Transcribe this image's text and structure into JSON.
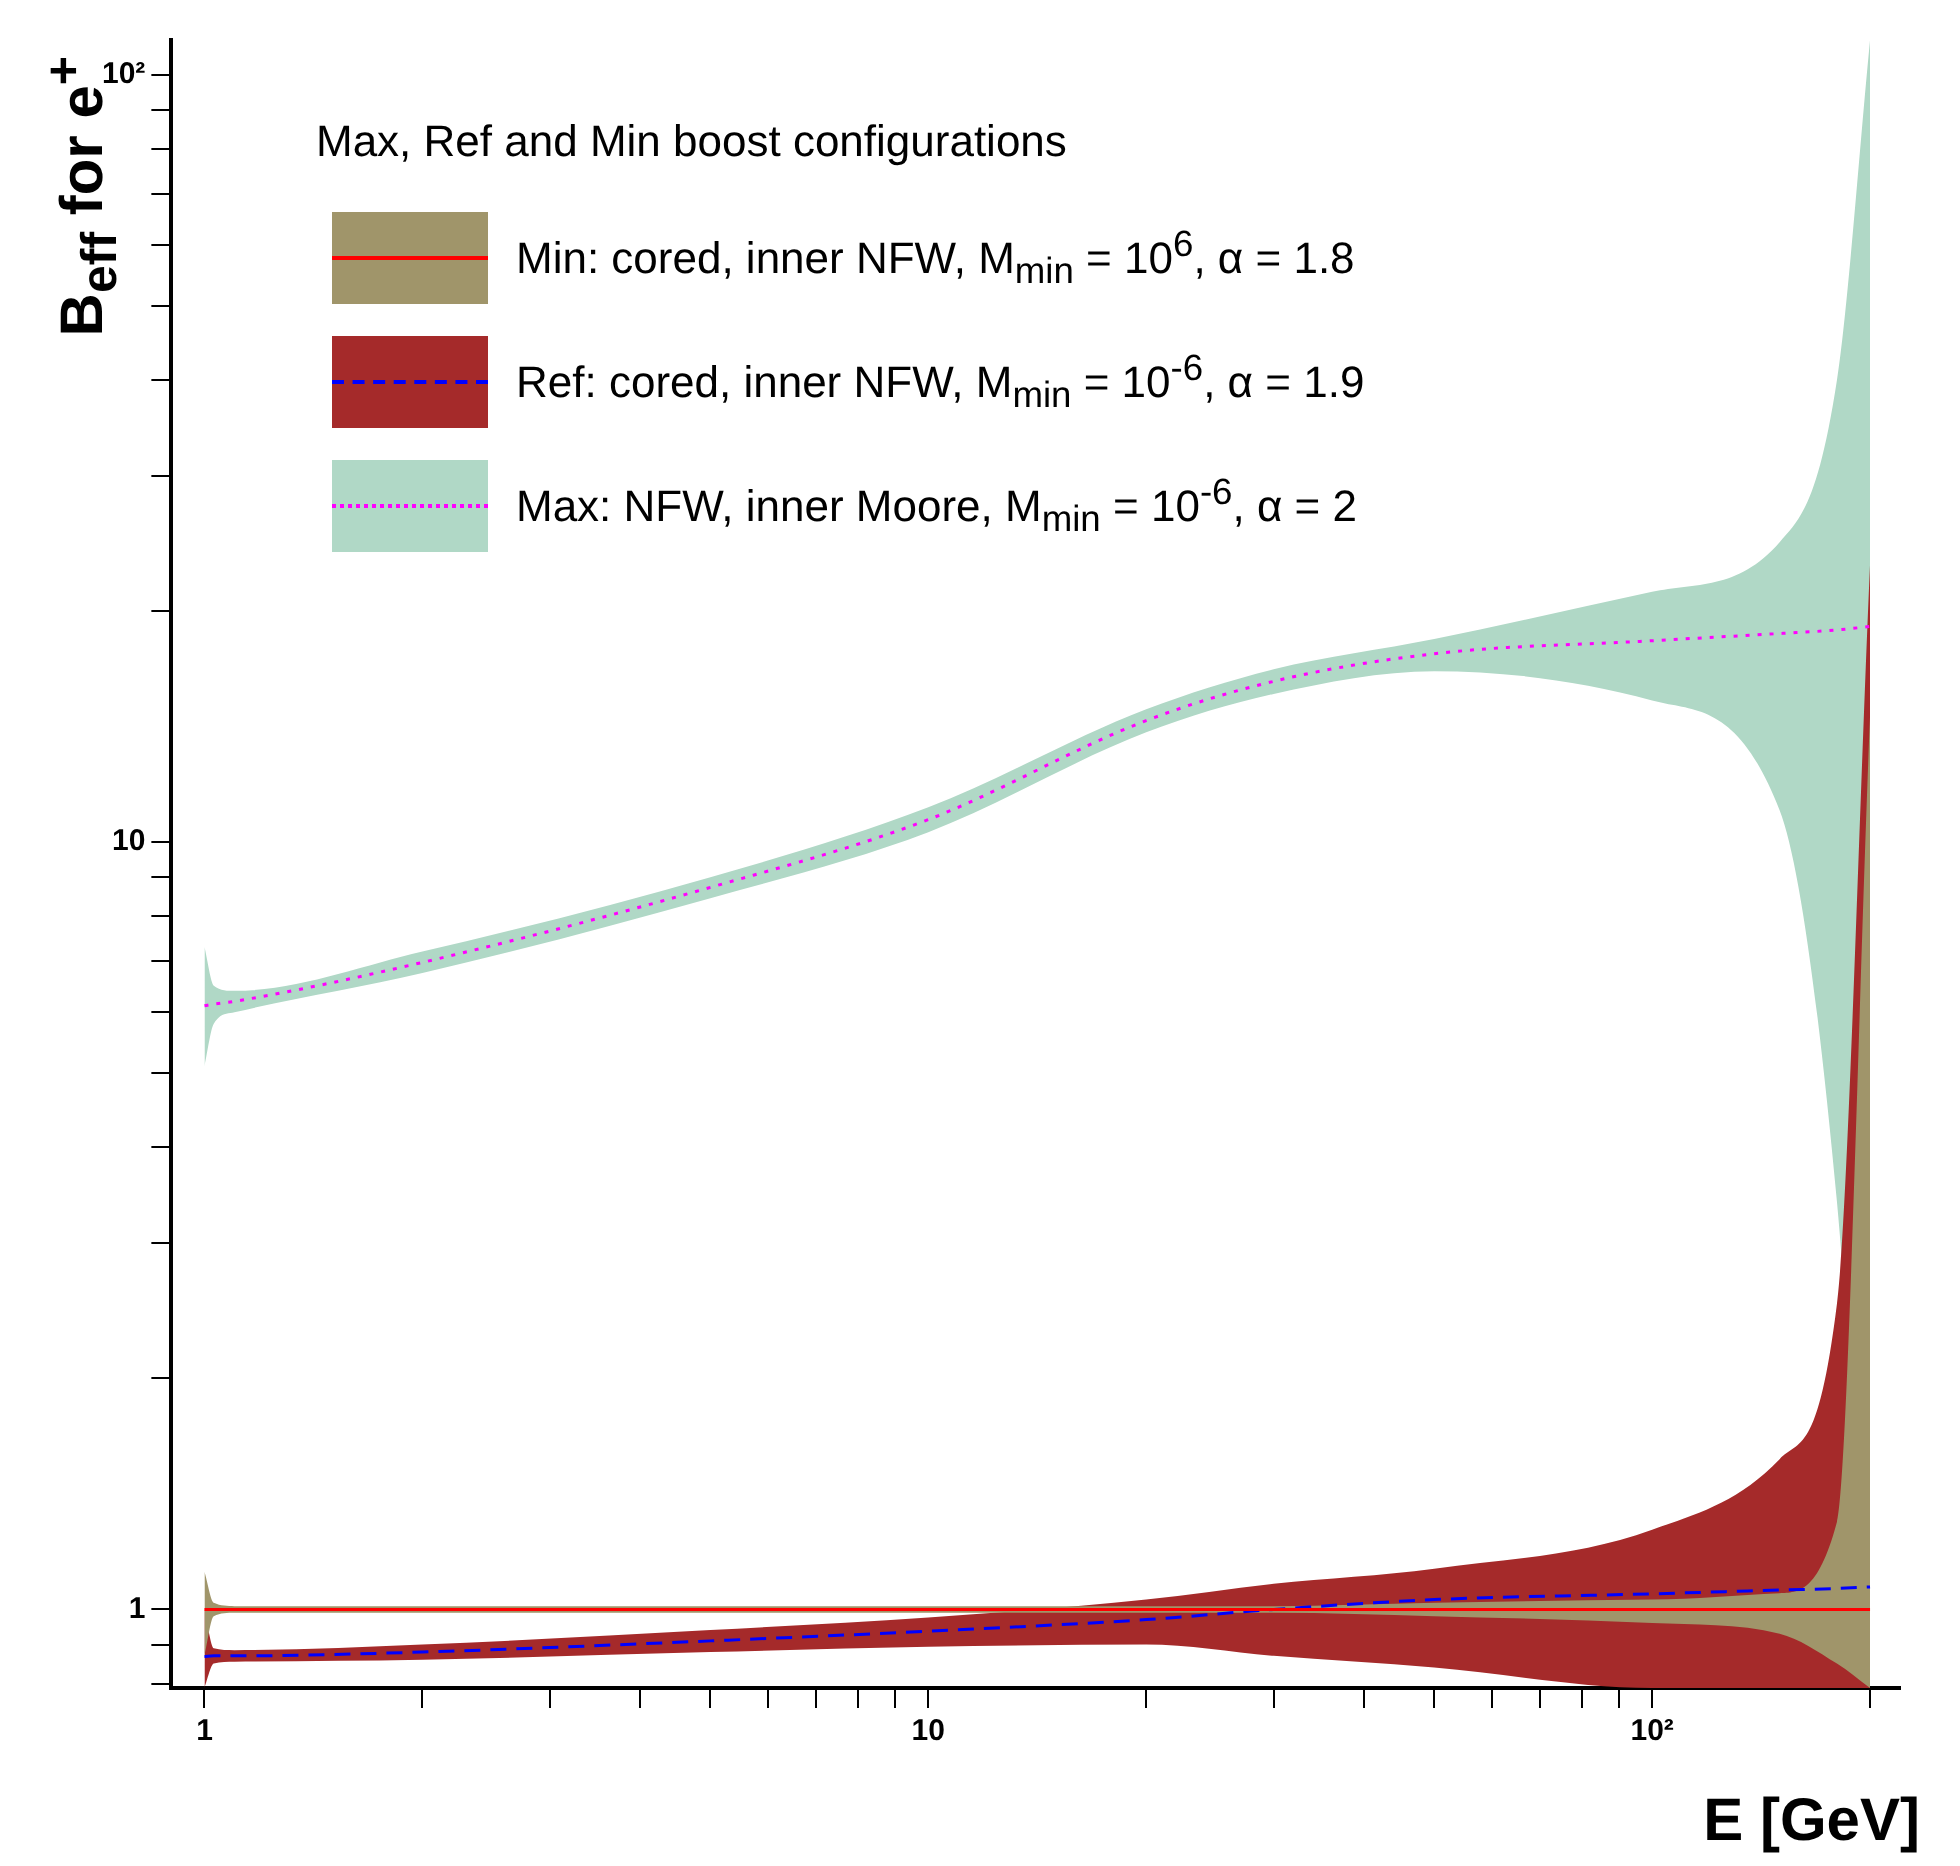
{
  "chart_data": {
    "type": "line",
    "xlabel": "E [GeV]",
    "ylabel": "B$_{eff}$ for e$^{+}$",
    "legend_title": "Max, Ref and Min boost configurations",
    "legend": "top left",
    "grid": false,
    "marker": "none",
    "log": "xy",
    "xlim": [
      0.9,
      220
    ],
    "ylim": [
      0.79,
      111
    ],
    "xticks": [
      1,
      {
        "value": 2,
        "label": null
      },
      {
        "value": 3,
        "label": null
      },
      {
        "value": 4,
        "label": null
      },
      {
        "value": 5,
        "label": null
      },
      {
        "value": 6,
        "label": null
      },
      {
        "value": 7,
        "label": null
      },
      {
        "value": 8,
        "label": null
      },
      {
        "value": 9,
        "label": null
      },
      10,
      {
        "value": 20,
        "label": null
      },
      {
        "value": 30,
        "label": null
      },
      {
        "value": 40,
        "label": null
      },
      {
        "value": 50,
        "label": null
      },
      {
        "value": 60,
        "label": null
      },
      {
        "value": 70,
        "label": null
      },
      {
        "value": 80,
        "label": null
      },
      {
        "value": 90,
        "label": null
      },
      {
        "value": 100,
        "label": "10²"
      },
      {
        "value": 200,
        "label": null
      }
    ],
    "yticks": [
      {
        "value": 0.8,
        "label": null
      },
      {
        "value": 0.9,
        "label": null
      },
      1,
      {
        "value": 2,
        "label": null
      },
      {
        "value": 3,
        "label": null
      },
      {
        "value": 4,
        "label": null
      },
      {
        "value": 5,
        "label": null
      },
      {
        "value": 6,
        "label": null
      },
      {
        "value": 7,
        "label": null
      },
      {
        "value": 8,
        "label": null
      },
      {
        "value": 9,
        "label": null
      },
      10,
      {
        "value": 20,
        "label": null
      },
      {
        "value": 30,
        "label": null
      },
      {
        "value": 40,
        "label": null
      },
      {
        "value": 50,
        "label": null
      },
      {
        "value": 60,
        "label": null
      },
      {
        "value": 70,
        "label": null
      },
      {
        "value": 80,
        "label": null
      },
      {
        "value": 90,
        "label": null
      },
      {
        "value": 100,
        "label": "10²"
      }
    ],
    "x": [
      1,
      1.03,
      1.1,
      2,
      5,
      10,
      20,
      30,
      50,
      100,
      150,
      180,
      200
    ],
    "series": [
      {
        "name": "Min: cored, inner NFW, M$_{min}$ = 10$^{6}$, α = 1.8",
        "color": "#ff0000",
        "colors": [
          "#a0956a",
          "#a0956a",
          "#a0956a",
          "#a0956a",
          "#a0956a",
          "#a0956a",
          "#a0956a",
          "#a0956a",
          "#a0956a",
          "#a0956a",
          "#a0956a",
          "#a0956a",
          "#a0956a"
        ],
        "line_style": "solid",
        "values": [
          1,
          1,
          1,
          1,
          1,
          1,
          1,
          1,
          1,
          1,
          1,
          1,
          1
        ],
        "upper": [
          1.12,
          1.02,
          1.01,
          1.01,
          1.01,
          1.01,
          1.01,
          1.01,
          1.02,
          1.03,
          1.05,
          1.3,
          14.6
        ],
        "lower": [
          0.87,
          0.98,
          0.99,
          0.99,
          0.99,
          0.99,
          0.99,
          0.99,
          0.98,
          0.96,
          0.93,
          0.85,
          0.79
        ]
      },
      {
        "name": "Ref: cored, inner NFW, M$_{min}$ = 10$^{-6}$, α = 1.9",
        "color": "#0000ff",
        "colors": [
          "#a52a2a",
          "#a52a2a",
          "#a52a2a",
          "#a52a2a",
          "#a52a2a",
          "#a52a2a",
          "#a52a2a",
          "#a52a2a",
          "#a52a2a",
          "#a52a2a",
          "#a52a2a",
          "#a52a2a",
          "#a52a2a"
        ],
        "line_style": "dashed",
        "values": [
          0.868,
          0.87,
          0.87,
          0.88,
          0.91,
          0.937,
          0.97,
          1.0,
          1.03,
          1.048,
          1.06,
          1.065,
          1.07
        ],
        "upper": [
          1.0,
          0.89,
          0.885,
          0.9,
          0.94,
          0.976,
          1.03,
          1.08,
          1.13,
          1.27,
          1.57,
          2.5,
          23
        ],
        "lower": [
          0.79,
          0.85,
          0.855,
          0.86,
          0.88,
          0.894,
          0.9,
          0.87,
          0.84,
          0.79,
          0.79,
          0.79,
          0.79
        ]
      },
      {
        "name": "Max: NFW, inner Moore, M$_{min}$ = 10$^{-6}$, α = 2",
        "color": "#ff00ff",
        "colors": [
          "#b0d8c6",
          "#b0d8c6",
          "#b0d8c6",
          "#b0d8c6",
          "#b0d8c6",
          "#b0d8c6",
          "#b0d8c6",
          "#b0d8c6",
          "#b0d8c6",
          "#b0d8c6",
          "#b0d8c6",
          "#b0d8c6",
          "#b0d8c6"
        ],
        "line_style": "dotted",
        "values": [
          6.12,
          6.15,
          6.2,
          6.97,
          8.73,
          10.7,
          14.4,
          16.2,
          17.6,
          18.3,
          18.7,
          18.9,
          19.1
        ],
        "upper": [
          7.3,
          6.5,
          6.4,
          7.2,
          9.0,
          11.1,
          14.9,
          16.8,
          18.4,
          21.2,
          24.6,
          40,
          111
        ],
        "lower": [
          5.1,
          5.8,
          6.0,
          6.75,
          8.45,
          10.3,
          13.9,
          15.6,
          16.7,
          15.3,
          11.0,
          3.4,
          0.79
        ]
      }
    ]
  }
}
